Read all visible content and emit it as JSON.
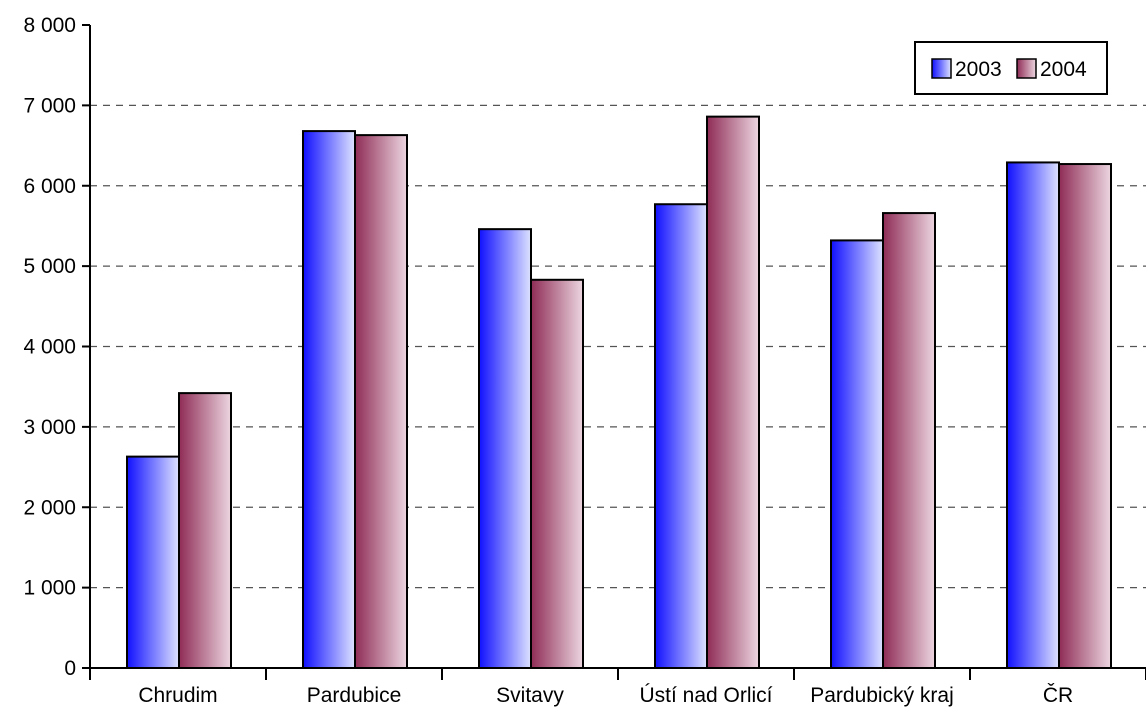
{
  "chart_data": {
    "type": "bar",
    "title": "",
    "xlabel": "",
    "ylabel": "",
    "categories": [
      "Chrudim",
      "Pardubice",
      "Svitavy",
      "Ústí nad Orlicí",
      "Pardubický kraj",
      "ČR"
    ],
    "series": [
      {
        "name": "2003",
        "values": [
          2630,
          6680,
          5460,
          5770,
          5320,
          6290
        ]
      },
      {
        "name": "2004",
        "values": [
          3420,
          6630,
          4830,
          6860,
          5660,
          6270
        ]
      }
    ],
    "ylim": [
      0,
      8000
    ],
    "yticks": [
      0,
      1000,
      2000,
      3000,
      4000,
      5000,
      6000,
      7000,
      8000
    ],
    "ytick_labels": [
      "0",
      "1 000",
      "2 000",
      "3 000",
      "4 000",
      "5 000",
      "6 000",
      "7 000",
      "8 000"
    ],
    "grid": "horizontal dashed",
    "legend": "top-right",
    "colors": {
      "2003_light": "#d0d8ff",
      "2003_dark": "#1a1aff",
      "2004_light": "#e8d0dc",
      "2004_dark": "#99335a"
    }
  }
}
